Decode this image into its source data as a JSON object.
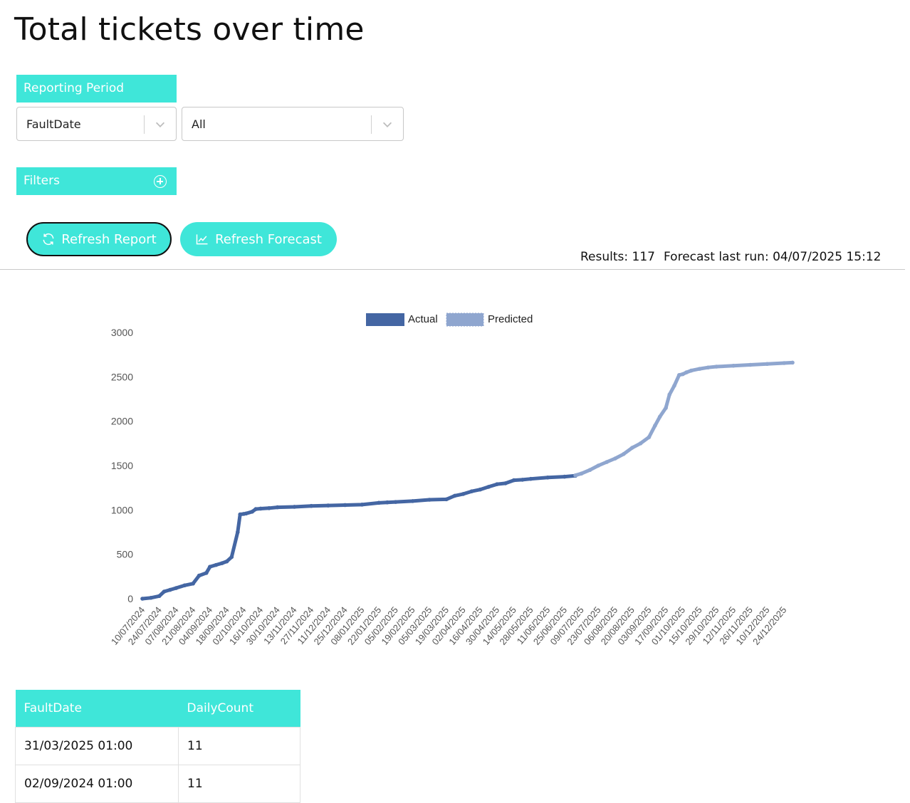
{
  "page": {
    "title": "Total tickets over time"
  },
  "reporting_period": {
    "header": "Reporting Period",
    "date_field": {
      "value": "FaultDate"
    },
    "range": {
      "value": "All"
    }
  },
  "filters": {
    "header": "Filters"
  },
  "actions": {
    "refresh_report": "Refresh Report",
    "refresh_forecast": "Refresh Forecast"
  },
  "status": {
    "results": "Results: 117",
    "forecast_last_run": "Forecast last run: 04/07/2025 15:12"
  },
  "colors": {
    "accent": "#3fe6d9",
    "actual": "#4466a3",
    "predicted": "#8fa6cf"
  },
  "chart_data": {
    "type": "line",
    "title": "",
    "xlabel": "",
    "ylabel": "",
    "ylim": [
      0,
      3000
    ],
    "yticks": [
      0,
      500,
      1000,
      1500,
      2000,
      2500,
      3000
    ],
    "xticks": [
      "10/07/2024",
      "24/07/2024",
      "07/08/2024",
      "21/08/2024",
      "04/09/2024",
      "18/09/2024",
      "02/10/2024",
      "16/10/2024",
      "30/10/2024",
      "13/11/2024",
      "27/11/2024",
      "11/12/2024",
      "25/12/2024",
      "08/01/2025",
      "22/01/2025",
      "05/02/2025",
      "19/02/2025",
      "05/03/2025",
      "19/03/2025",
      "02/04/2025",
      "16/04/2025",
      "30/04/2025",
      "14/05/2025",
      "28/05/2025",
      "11/06/2025",
      "25/06/2025",
      "09/07/2025",
      "23/07/2025",
      "06/08/2025",
      "20/08/2025",
      "03/09/2025",
      "17/09/2025",
      "01/10/2025",
      "15/10/2025",
      "29/10/2025",
      "12/11/2025",
      "26/11/2025",
      "10/12/2025",
      "24/12/2025"
    ],
    "legend": "top-center",
    "grid": false,
    "series": [
      {
        "name": "Actual",
        "x": [
          "10/07/2024",
          "17/07/2024",
          "24/07/2024",
          "28/07/2024",
          "02/08/2024",
          "07/08/2024",
          "14/08/2024",
          "21/08/2024",
          "26/08/2024",
          "01/09/2024",
          "04/09/2024",
          "09/09/2024",
          "14/09/2024",
          "18/09/2024",
          "22/09/2024",
          "27/09/2024",
          "29/09/2024",
          "02/10/2024",
          "04/10/2024",
          "09/10/2024",
          "12/10/2024",
          "16/10/2024",
          "23/10/2024",
          "30/10/2024",
          "13/11/2024",
          "27/11/2024",
          "11/12/2024",
          "25/12/2024",
          "08/01/2025",
          "22/01/2025",
          "29/01/2025",
          "05/02/2025",
          "19/02/2025",
          "05/03/2025",
          "19/03/2025",
          "26/03/2025",
          "02/04/2025",
          "09/04/2025",
          "16/04/2025",
          "23/04/2025",
          "30/04/2025",
          "07/05/2025",
          "14/05/2025",
          "21/05/2025",
          "28/05/2025",
          "11/06/2025",
          "25/06/2025",
          "04/07/2025"
        ],
        "y": [
          0,
          10,
          30,
          80,
          100,
          120,
          150,
          170,
          260,
          290,
          360,
          380,
          400,
          420,
          470,
          750,
          950,
          955,
          960,
          980,
          1010,
          1015,
          1020,
          1030,
          1035,
          1045,
          1050,
          1055,
          1060,
          1080,
          1085,
          1090,
          1100,
          1115,
          1120,
          1160,
          1180,
          1210,
          1230,
          1260,
          1290,
          1300,
          1335,
          1340,
          1350,
          1365,
          1375,
          1385
        ]
      },
      {
        "name": "Predicted",
        "x": [
          "04/07/2025",
          "09/07/2025",
          "16/07/2025",
          "23/07/2025",
          "30/07/2025",
          "06/08/2025",
          "13/08/2025",
          "20/08/2025",
          "27/08/2025",
          "03/09/2025",
          "08/09/2025",
          "12/09/2025",
          "17/09/2025",
          "20/09/2025",
          "24/09/2025",
          "28/09/2025",
          "01/10/2025",
          "04/10/2025",
          "08/10/2025",
          "15/10/2025",
          "22/10/2025",
          "29/10/2025",
          "12/11/2025",
          "26/11/2025",
          "10/12/2025",
          "24/12/2025",
          "31/12/2025"
        ],
        "y": [
          1390,
          1410,
          1450,
          1500,
          1540,
          1580,
          1630,
          1700,
          1750,
          1820,
          1950,
          2050,
          2150,
          2300,
          2400,
          2520,
          2530,
          2550,
          2570,
          2590,
          2605,
          2615,
          2625,
          2635,
          2645,
          2655,
          2660
        ]
      }
    ]
  },
  "table": {
    "columns": [
      "FaultDate",
      "DailyCount"
    ],
    "rows": [
      [
        "31/03/2025 01:00",
        "11"
      ],
      [
        "02/09/2024 01:00",
        "11"
      ]
    ]
  }
}
